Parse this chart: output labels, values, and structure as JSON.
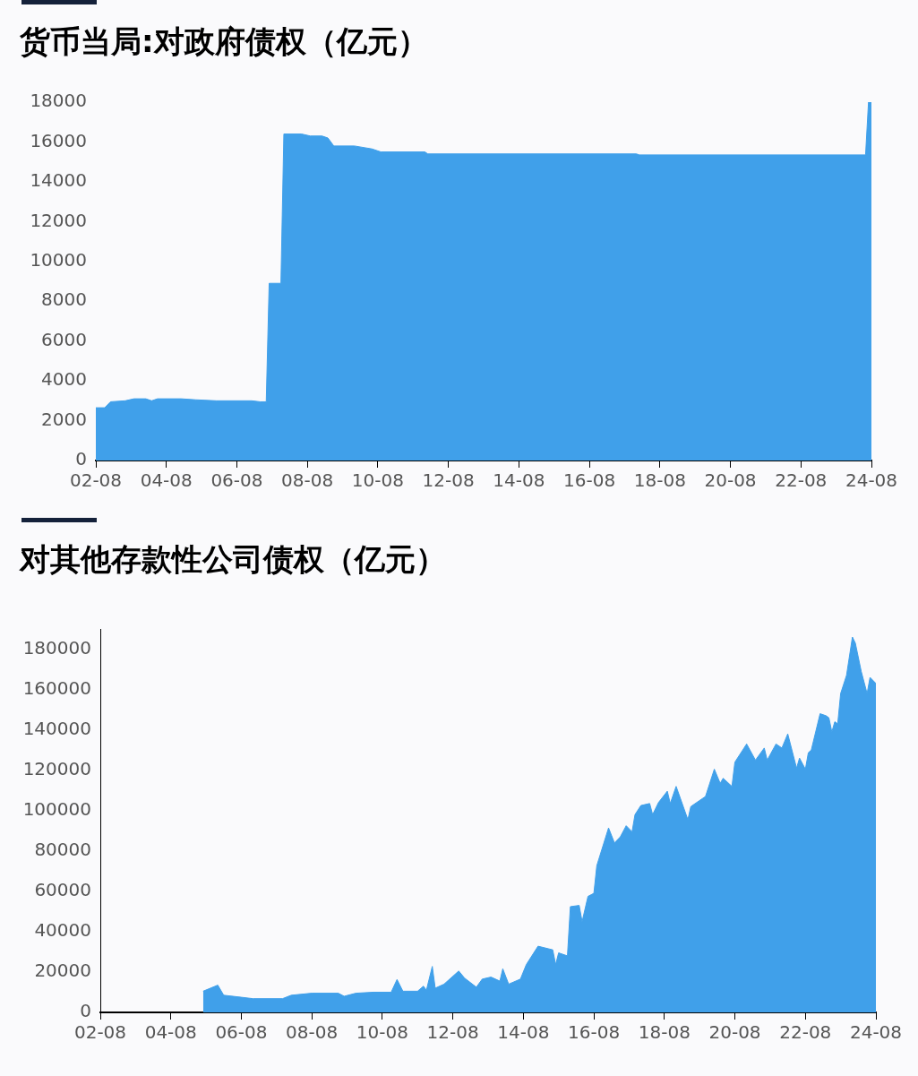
{
  "chart_data": [
    {
      "type": "area",
      "title": "货币当局:对政府债权（亿元）",
      "color": "#40a0ea",
      "x": [
        "2002-08",
        "2002-11",
        "2003-01",
        "2003-06",
        "2003-09",
        "2004-01",
        "2004-03",
        "2004-05",
        "2005-01",
        "2005-06",
        "2006-01",
        "2007-01",
        "2007-04",
        "2007-06",
        "2007-07",
        "2007-11",
        "2007-12",
        "2008-06",
        "2008-09",
        "2009-01",
        "2009-03",
        "2009-05",
        "2009-12",
        "2010-06",
        "2010-09",
        "2011-12",
        "2012-01",
        "2017-12",
        "2018-01",
        "2024-06",
        "2024-07",
        "2024-08"
      ],
      "values": [
        2650,
        2650,
        2950,
        3000,
        3100,
        3100,
        3000,
        3100,
        3100,
        3050,
        3000,
        3000,
        2950,
        2950,
        8900,
        8900,
        16400,
        16400,
        16300,
        16300,
        16200,
        15800,
        15800,
        15650,
        15500,
        15500,
        15400,
        15400,
        15350,
        15350,
        18000,
        18000
      ],
      "xlim": [
        "2002-08",
        "2024-08"
      ],
      "xticks": [
        {
          "value": "2002-08",
          "label": "02-08"
        },
        {
          "value": "2004-08",
          "label": "04-08"
        },
        {
          "value": "2006-08",
          "label": "06-08"
        },
        {
          "value": "2008-08",
          "label": "08-08"
        },
        {
          "value": "2010-08",
          "label": "10-08"
        },
        {
          "value": "2012-08",
          "label": "12-08"
        },
        {
          "value": "2014-08",
          "label": "14-08"
        },
        {
          "value": "2016-08",
          "label": "16-08"
        },
        {
          "value": "2018-08",
          "label": "18-08"
        },
        {
          "value": "2020-08",
          "label": "20-08"
        },
        {
          "value": "2022-08",
          "label": "22-08"
        },
        {
          "value": "2024-08",
          "label": "24-08"
        }
      ],
      "ylim": [
        0,
        18000
      ],
      "yticks": [
        0,
        2000,
        4000,
        6000,
        8000,
        10000,
        12000,
        14000,
        16000,
        18000
      ],
      "grid": false,
      "legend": false
    },
    {
      "type": "area",
      "title": "对其他存款性公司债权（亿元）",
      "color": "#40a0ea",
      "x": [
        "2005-07",
        "2005-12",
        "2006-02",
        "2006-08",
        "2006-12",
        "2007-10",
        "2008-01",
        "2008-08",
        "2009-05",
        "2009-07",
        "2009-11",
        "2010-05",
        "2010-11",
        "2011-01",
        "2011-03",
        "2011-08",
        "2011-10",
        "2011-11",
        "2012-01",
        "2012-02",
        "2012-05",
        "2012-10",
        "2012-12",
        "2013-04",
        "2013-06",
        "2013-09",
        "2013-12",
        "2014-01",
        "2014-03",
        "2014-07",
        "2014-09",
        "2015-01",
        "2015-06",
        "2015-07",
        "2015-08",
        "2015-11",
        "2015-12",
        "2016-03",
        "2016-04",
        "2016-06",
        "2016-08",
        "2016-09",
        "2017-01",
        "2017-03",
        "2017-05",
        "2017-07",
        "2017-09",
        "2017-10",
        "2017-12",
        "2018-03",
        "2018-04",
        "2018-06",
        "2018-09",
        "2018-10",
        "2018-12",
        "2019-04",
        "2019-05",
        "2019-10",
        "2020-01",
        "2020-03",
        "2020-04",
        "2020-07",
        "2020-08",
        "2020-12",
        "2021-03",
        "2021-06",
        "2021-07",
        "2021-10",
        "2021-12",
        "2022-02",
        "2022-05",
        "2022-06",
        "2022-08",
        "2022-09",
        "2022-10",
        "2023-01",
        "2023-03",
        "2023-04",
        "2023-05",
        "2023-06",
        "2023-07",
        "2023-08",
        "2023-10",
        "2023-12",
        "2024-01",
        "2024-03",
        "2024-05",
        "2024-06",
        "2024-08"
      ],
      "values": [
        10500,
        13500,
        8500,
        7500,
        6800,
        6800,
        8500,
        9500,
        9500,
        8000,
        9500,
        10000,
        10000,
        16300,
        10500,
        10500,
        13000,
        11000,
        22800,
        12000,
        14000,
        20500,
        17000,
        12500,
        16500,
        17500,
        15500,
        21600,
        14000,
        16500,
        23700,
        32800,
        31000,
        23700,
        29500,
        28000,
        52400,
        53000,
        45000,
        57500,
        59000,
        72700,
        91400,
        84000,
        87000,
        92500,
        89500,
        98000,
        102500,
        103500,
        98000,
        104000,
        109600,
        103500,
        112000,
        95500,
        102000,
        107000,
        120500,
        113500,
        116000,
        112000,
        124000,
        133000,
        125000,
        131000,
        125000,
        133000,
        131000,
        138000,
        121000,
        126000,
        120500,
        128700,
        130000,
        148000,
        147000,
        146000,
        139000,
        144000,
        143000,
        158000,
        167000,
        186000,
        183000,
        169000,
        158000,
        166000,
        163000
      ],
      "xlim": [
        "2002-08",
        "2024-08"
      ],
      "xticks": [
        {
          "value": "2002-08",
          "label": "02-08"
        },
        {
          "value": "2004-08",
          "label": "04-08"
        },
        {
          "value": "2006-08",
          "label": "06-08"
        },
        {
          "value": "2008-08",
          "label": "08-08"
        },
        {
          "value": "2010-08",
          "label": "10-08"
        },
        {
          "value": "2012-08",
          "label": "12-08"
        },
        {
          "value": "2014-08",
          "label": "14-08"
        },
        {
          "value": "2016-08",
          "label": "16-08"
        },
        {
          "value": "2018-08",
          "label": "18-08"
        },
        {
          "value": "2020-08",
          "label": "20-08"
        },
        {
          "value": "2022-08",
          "label": "22-08"
        },
        {
          "value": "2024-08",
          "label": "24-08"
        }
      ],
      "ylim": [
        0,
        190000
      ],
      "yticks": [
        0,
        20000,
        40000,
        60000,
        80000,
        100000,
        120000,
        140000,
        160000,
        180000
      ],
      "grid": false,
      "legend": false
    }
  ]
}
